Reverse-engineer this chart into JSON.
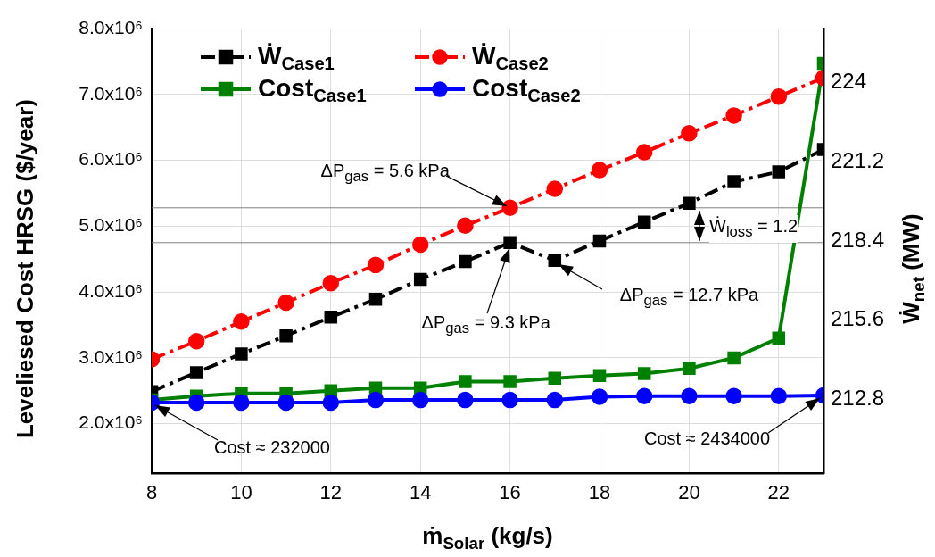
{
  "chart_data": {
    "type": "line",
    "xlabel": "ṁ$_{Solar}$ (kg/s)",
    "ylabel": "Leveliesed Cost HRSG ($/year)",
    "y2label": "Ẇ$_{net}$ (MW)",
    "x": [
      8,
      9,
      10,
      11,
      12,
      13,
      14,
      15,
      16,
      17,
      18,
      19,
      20,
      21,
      22,
      23
    ],
    "xlim": [
      8,
      23
    ],
    "xticks": [
      8,
      10,
      12,
      14,
      16,
      18,
      20,
      22
    ],
    "ylim": [
      1250000,
      8000000
    ],
    "yticks": [
      {
        "value": 2000000,
        "label": "2.0x10⁶"
      },
      {
        "value": 3000000,
        "label": "3.0x10⁶"
      },
      {
        "value": 4000000,
        "label": "4.0x10⁶"
      },
      {
        "value": 5000000,
        "label": "5.0x10⁶"
      },
      {
        "value": 6000000,
        "label": "6.0x10⁶"
      },
      {
        "value": 7000000,
        "label": "7.0x10⁶"
      },
      {
        "value": 8000000,
        "label": "8.0x10⁶"
      }
    ],
    "y2lim": [
      210.2,
      225.9
    ],
    "y2ticks": [
      212.8,
      215.6,
      218.4,
      221.2,
      224
    ],
    "grid": true,
    "legend": "top left",
    "series": [
      {
        "name": "Ẇ$_{Case1}$",
        "color": "#000000",
        "axis": "y2",
        "line_style": "dashed",
        "marker": "square",
        "values": [
          213.08,
          213.75,
          214.41,
          215.05,
          215.71,
          216.34,
          217.04,
          217.67,
          218.34,
          217.71,
          218.4,
          219.07,
          219.73,
          220.49,
          220.84,
          221.63
        ]
      },
      {
        "name": "Cost$_{Case1}$",
        "color": "#008000",
        "line_style": "solid",
        "marker": "square",
        "values": [
          2360000,
          2420000,
          2460000,
          2460000,
          2500000,
          2540000,
          2540000,
          2640000,
          2640000,
          2690000,
          2730000,
          2760000,
          2840000,
          3000000,
          3300000,
          7470000
        ]
      },
      {
        "name": "Ẇ$_{Case2}$",
        "color": "#ff0000",
        "axis": "y2",
        "line_style": "dashed",
        "marker": "circle",
        "values": [
          214.22,
          214.86,
          215.55,
          216.22,
          216.91,
          217.55,
          218.27,
          218.94,
          219.57,
          220.24,
          220.9,
          221.53,
          222.2,
          222.83,
          223.5,
          224.16
        ]
      },
      {
        "name": "Cost$_{Case2}$",
        "color": "#0000ff",
        "line_style": "solid",
        "marker": "circle",
        "values": [
          2320000,
          2320000,
          2320000,
          2320000,
          2320000,
          2360000,
          2360000,
          2360000,
          2360000,
          2360000,
          2410000,
          2420000,
          2420000,
          2420000,
          2420000,
          2430000
        ]
      }
    ],
    "ref_lines": [
      {
        "axis": "y2",
        "value": 219.57,
        "color": "#808080"
      },
      {
        "axis": "y2",
        "value": 218.34,
        "color": "#808080"
      }
    ],
    "annotations": [
      {
        "text": "ΔP$_{gas}$ = 5.6 kPa",
        "x": 16,
        "y": 5260000
      },
      {
        "text": "ΔP$_{gas}$ = 9.3 kPa",
        "x": 16,
        "y": 4730000
      },
      {
        "text": "ΔP$_{gas}$ = 12.7 kPa",
        "x": 17,
        "y": 4460000
      },
      "Ẇ$_{loss}$ = 1.2",
      {
        "text": "Cost ≈ 232000",
        "x": 8,
        "y": 2320000
      },
      {
        "text": "Cost ≈ 2434000",
        "x": 23,
        "y": 2430000
      }
    ]
  }
}
